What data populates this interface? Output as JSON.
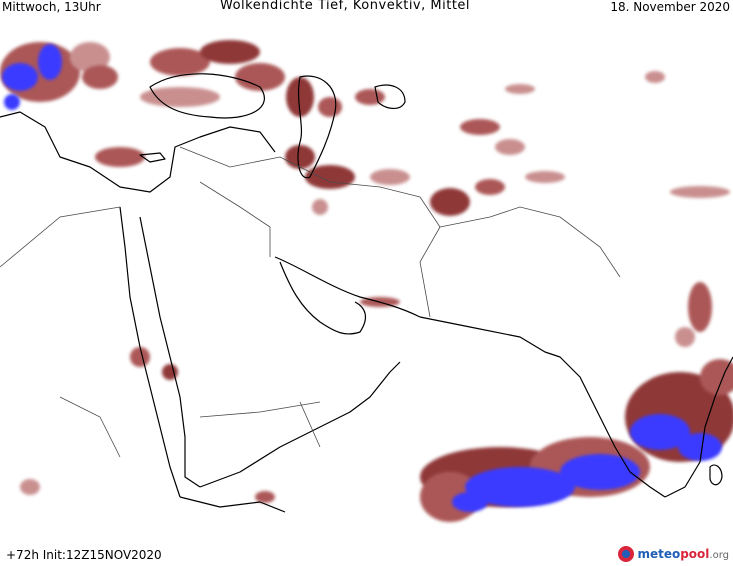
{
  "header": {
    "day_time": "Mittwoch, 13Uhr",
    "title": "Wolkendichte   Tief, Konvektiv, Mittel",
    "date": "18. November 2020"
  },
  "footer": {
    "init": "+72h  Init:12Z15NOV2020",
    "logo_meteo": "meteo",
    "logo_pool": "pool",
    "logo_org": ".org"
  },
  "colors": {
    "cloud_dark": "#8a2f2f",
    "cloud_mid": "#a8504f",
    "cloud_light": "#c78a8a",
    "convective": "#3a3aff",
    "coastline": "#000000",
    "border": "#4a4a4a"
  }
}
